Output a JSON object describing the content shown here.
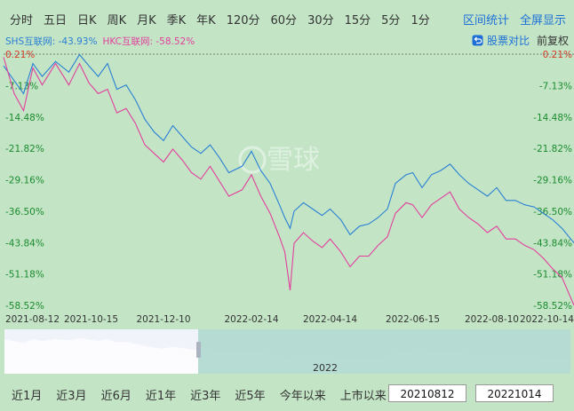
{
  "periods": [
    "分时",
    "五日",
    "日K",
    "周K",
    "月K",
    "季K",
    "年K",
    "120分",
    "60分",
    "30分",
    "15分",
    "5分",
    "1分"
  ],
  "top_actions": {
    "interval_stats": "区间统计",
    "fullscreen": "全屏显示"
  },
  "legend": {
    "shs": "SHS互联网: -43.93%",
    "hkc": "HKC互联网: -58.52%"
  },
  "controls": {
    "compare": "股票对比",
    "adjust": "前复权"
  },
  "watermark": "雪球",
  "colors": {
    "shs": "#2a7fd4",
    "hkc": "#e23f9c",
    "pos": "#d53a26",
    "neg": "#1b8a2e"
  },
  "nav_year": "2022",
  "ranges": [
    "近1月",
    "近3月",
    "近6月",
    "近1年",
    "近3年",
    "近5年",
    "今年以来",
    "上市以来"
  ],
  "date_start": "20210812",
  "date_end": "20221014",
  "chart_data": {
    "type": "line",
    "y_ticks": [
      "0.21%",
      "-7.13%",
      "-14.48%",
      "-21.82%",
      "-29.16%",
      "-36.50%",
      "-43.84%",
      "-51.18%",
      "-58.52%"
    ],
    "ylim": [
      -58.52,
      0.21
    ],
    "x_ticks": [
      "2021-08-12",
      "2021-10-15",
      "2021-12-10",
      "2022-02-14",
      "2022-04-14",
      "2022-06-15",
      "2022-08-10",
      "2022-10-14"
    ],
    "series": [
      {
        "name": "SHS互联网",
        "color": "#2a7fd4",
        "x": [
          "2021-08-12",
          "2021-08-20",
          "2021-08-27",
          "2021-09-03",
          "2021-09-10",
          "2021-09-20",
          "2021-09-30",
          "2021-10-08",
          "2021-10-15",
          "2021-10-22",
          "2021-10-29",
          "2021-11-05",
          "2021-11-12",
          "2021-11-19",
          "2021-11-26",
          "2021-12-03",
          "2021-12-10",
          "2021-12-17",
          "2021-12-24",
          "2021-12-31",
          "2022-01-07",
          "2022-01-14",
          "2022-01-21",
          "2022-01-28",
          "2022-02-07",
          "2022-02-14",
          "2022-02-21",
          "2022-02-28",
          "2022-03-07",
          "2022-03-11",
          "2022-03-15",
          "2022-03-18",
          "2022-03-25",
          "2022-04-01",
          "2022-04-08",
          "2022-04-14",
          "2022-04-22",
          "2022-04-29",
          "2022-05-06",
          "2022-05-13",
          "2022-05-20",
          "2022-05-27",
          "2022-06-02",
          "2022-06-10",
          "2022-06-15",
          "2022-06-22",
          "2022-06-29",
          "2022-07-06",
          "2022-07-13",
          "2022-07-20",
          "2022-07-27",
          "2022-08-03",
          "2022-08-10",
          "2022-08-17",
          "2022-08-24",
          "2022-08-31",
          "2022-09-07",
          "2022-09-14",
          "2022-09-21",
          "2022-09-28",
          "2022-10-05",
          "2022-10-14"
        ],
        "y": [
          -2.5,
          -6.0,
          -9.0,
          -2.0,
          -5.0,
          -1.5,
          -4.0,
          0.1,
          -2.5,
          -5.0,
          -2.0,
          -8.0,
          -7.0,
          -10.5,
          -15.0,
          -18.0,
          -20.0,
          -16.5,
          -19.0,
          -21.5,
          -23.0,
          -21.0,
          -24.0,
          -27.5,
          -26.0,
          -22.5,
          -27.0,
          -30.0,
          -35.0,
          -38.0,
          -40.5,
          -36.5,
          -34.5,
          -36.0,
          -37.5,
          -36.0,
          -38.5,
          -42.0,
          -40.0,
          -39.5,
          -38.0,
          -36.0,
          -30.0,
          -28.0,
          -27.5,
          -31.0,
          -28.0,
          -27.0,
          -25.5,
          -28.0,
          -30.0,
          -31.5,
          -33.0,
          -31.0,
          -34.0,
          -34.0,
          -35.0,
          -35.5,
          -37.0,
          -38.5,
          -40.5,
          -43.93
        ]
      },
      {
        "name": "HKC互联网",
        "color": "#e23f9c",
        "x": [
          "2021-08-12",
          "2021-08-20",
          "2021-08-27",
          "2021-09-03",
          "2021-09-10",
          "2021-09-20",
          "2021-09-30",
          "2021-10-08",
          "2021-10-15",
          "2021-10-22",
          "2021-10-29",
          "2021-11-05",
          "2021-11-12",
          "2021-11-19",
          "2021-11-26",
          "2021-12-03",
          "2021-12-10",
          "2021-12-17",
          "2021-12-24",
          "2021-12-31",
          "2022-01-07",
          "2022-01-14",
          "2022-01-21",
          "2022-01-28",
          "2022-02-07",
          "2022-02-14",
          "2022-02-21",
          "2022-02-28",
          "2022-03-07",
          "2022-03-11",
          "2022-03-15",
          "2022-03-18",
          "2022-03-25",
          "2022-04-01",
          "2022-04-08",
          "2022-04-14",
          "2022-04-22",
          "2022-04-29",
          "2022-05-06",
          "2022-05-13",
          "2022-05-20",
          "2022-05-27",
          "2022-06-02",
          "2022-06-10",
          "2022-06-15",
          "2022-06-22",
          "2022-06-29",
          "2022-07-06",
          "2022-07-13",
          "2022-07-20",
          "2022-07-27",
          "2022-08-03",
          "2022-08-10",
          "2022-08-17",
          "2022-08-24",
          "2022-08-31",
          "2022-09-07",
          "2022-09-14",
          "2022-09-21",
          "2022-09-28",
          "2022-10-05",
          "2022-10-14"
        ],
        "y": [
          -0.5,
          -9.0,
          -13.0,
          -3.0,
          -7.0,
          -2.0,
          -7.0,
          -2.0,
          -6.5,
          -9.0,
          -8.0,
          -13.5,
          -12.5,
          -16.0,
          -21.0,
          -23.0,
          -25.0,
          -22.0,
          -24.5,
          -27.5,
          -29.0,
          -26.0,
          -29.5,
          -33.0,
          -31.5,
          -28.0,
          -33.0,
          -37.0,
          -42.5,
          -46.0,
          -55.0,
          -44.0,
          -41.5,
          -43.5,
          -45.0,
          -43.0,
          -46.0,
          -49.5,
          -47.0,
          -47.0,
          -44.5,
          -42.5,
          -37.0,
          -34.5,
          -35.0,
          -38.0,
          -35.0,
          -33.5,
          -32.0,
          -36.0,
          -38.0,
          -39.5,
          -41.5,
          -40.0,
          -43.0,
          -43.0,
          -44.5,
          -45.5,
          -47.5,
          -50.0,
          -52.0,
          -58.52
        ]
      }
    ],
    "navigator_year": "2022"
  }
}
